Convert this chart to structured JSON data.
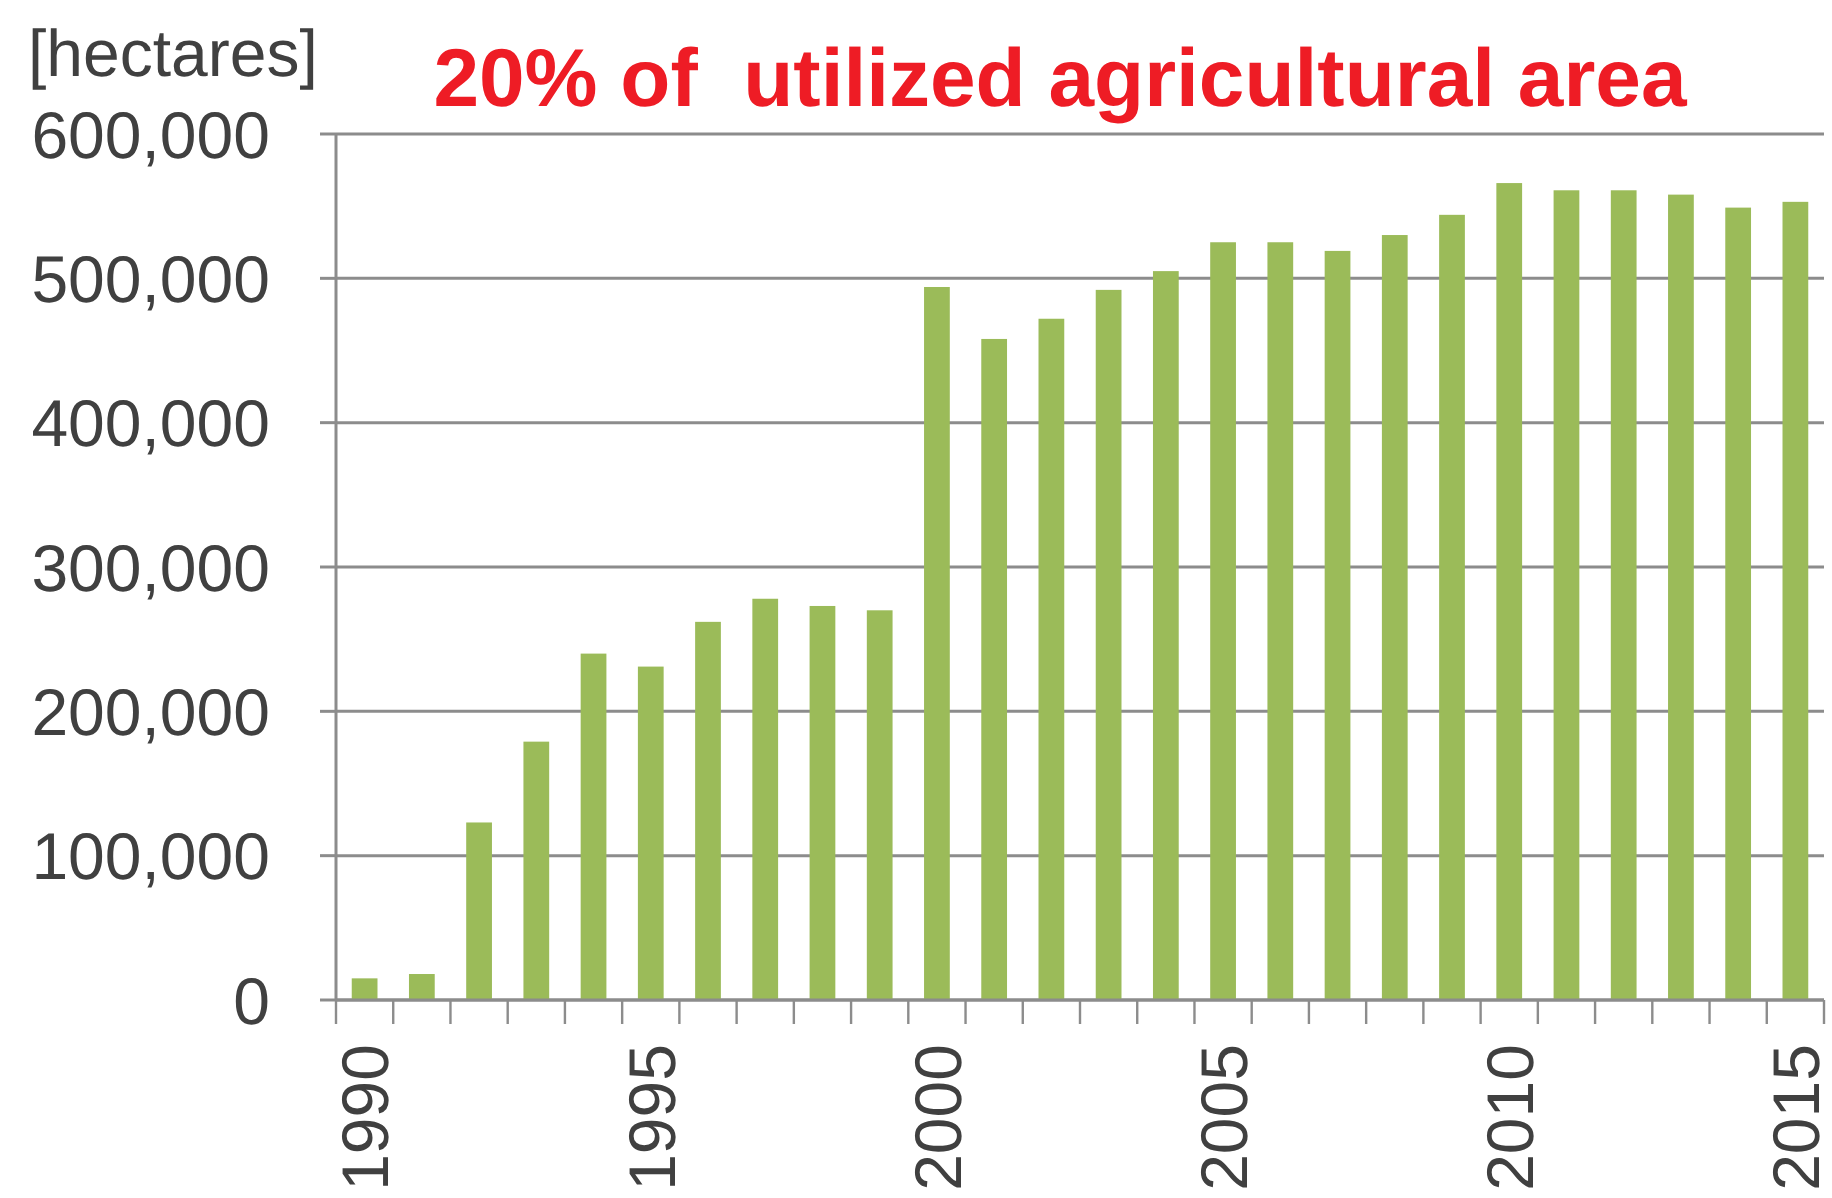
{
  "chart_data": {
    "type": "bar",
    "title": "20% of  utilized agricultural area",
    "ylabel": "[hectares]",
    "categories": [
      "1990",
      null,
      null,
      null,
      null,
      "1995",
      null,
      null,
      null,
      null,
      "2000",
      null,
      null,
      null,
      null,
      "2005",
      null,
      null,
      null,
      null,
      "2010",
      null,
      null,
      null,
      null,
      "2015"
    ],
    "values": [
      15000,
      18000,
      123000,
      179000,
      240000,
      231000,
      262000,
      278000,
      273000,
      270000,
      494000,
      458000,
      472000,
      492000,
      505000,
      525000,
      525000,
      519000,
      530000,
      544000,
      566000,
      561000,
      561000,
      558000,
      549000,
      553000
    ],
    "color": "#9bbb59",
    "ylim": [
      0,
      600000
    ],
    "yticks": [
      0,
      {
        "value": 100000,
        "label": "100,000"
      },
      {
        "value": 200000,
        "label": "200,000"
      },
      {
        "value": 300000,
        "label": "300,000"
      },
      {
        "value": 400000,
        "label": "400,000"
      },
      {
        "value": 500000,
        "label": "500,000"
      },
      {
        "value": 600000,
        "label": "600,000"
      }
    ],
    "grid": "y"
  }
}
